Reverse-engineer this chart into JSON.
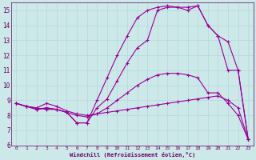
{
  "xlabel": "Windchill (Refroidissement éolien,°C)",
  "background_color": "#cce8e8",
  "grid_color": "#aadddd",
  "line_color": "#990099",
  "text_color": "#660066",
  "xlim": [
    -0.5,
    23.5
  ],
  "ylim": [
    6,
    15.5
  ],
  "xticks": [
    0,
    1,
    2,
    3,
    4,
    5,
    6,
    7,
    8,
    9,
    10,
    11,
    12,
    13,
    14,
    15,
    16,
    17,
    18,
    19,
    20,
    21,
    22,
    23
  ],
  "yticks": [
    6,
    7,
    8,
    9,
    10,
    11,
    12,
    13,
    14,
    15
  ],
  "series": [
    [
      8.8,
      8.6,
      8.5,
      8.8,
      8.6,
      8.3,
      8.1,
      8.0,
      8.1,
      8.2,
      8.3,
      8.4,
      8.5,
      8.6,
      8.7,
      8.8,
      8.9,
      9.0,
      9.1,
      9.2,
      9.3,
      9.0,
      8.5,
      6.4
    ],
    [
      8.8,
      8.6,
      8.4,
      8.5,
      8.4,
      8.2,
      8.0,
      7.9,
      8.1,
      8.5,
      9.0,
      9.5,
      10.0,
      10.4,
      10.7,
      10.8,
      10.8,
      10.7,
      10.5,
      9.5,
      9.5,
      8.8,
      8.0,
      6.4
    ],
    [
      8.8,
      8.6,
      8.4,
      8.5,
      8.4,
      8.2,
      7.5,
      7.5,
      9.0,
      10.5,
      12.0,
      13.3,
      14.5,
      15.0,
      15.2,
      15.3,
      15.2,
      15.2,
      15.3,
      14.0,
      13.3,
      12.9,
      11.0,
      6.4
    ],
    [
      8.8,
      8.6,
      8.5,
      8.4,
      8.4,
      8.2,
      7.5,
      7.5,
      8.5,
      9.1,
      10.3,
      11.5,
      12.5,
      13.0,
      15.0,
      15.2,
      15.2,
      15.0,
      15.3,
      14.0,
      13.3,
      11.0,
      11.0,
      6.4
    ]
  ]
}
